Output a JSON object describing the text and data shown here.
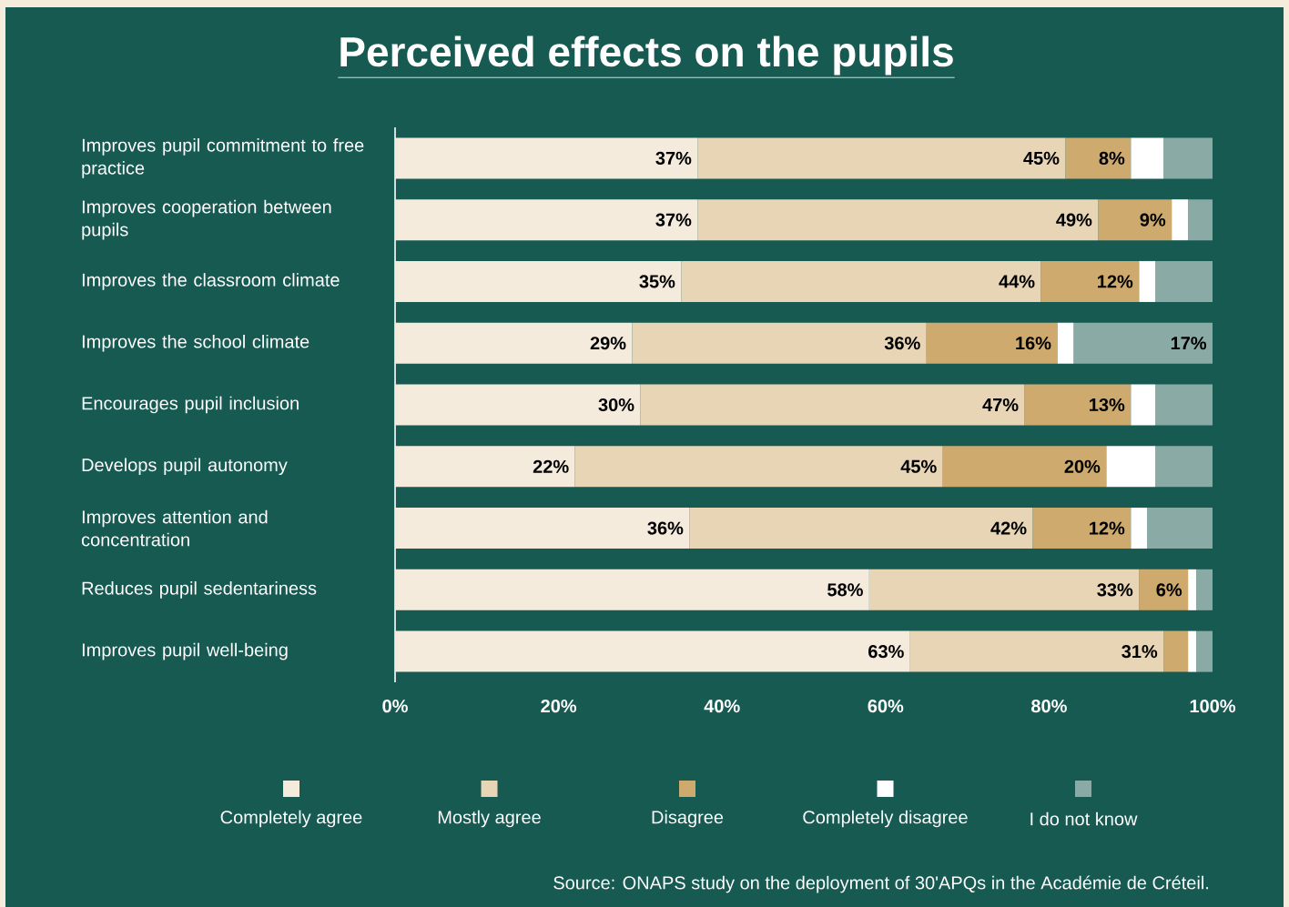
{
  "chart_data": {
    "type": "bar",
    "orientation": "horizontal",
    "stacked": true,
    "title": "Perceived effects on the pupils",
    "categories": [
      "Improves pupil commitment to free practice",
      "Improves cooperation between pupils",
      "Improves the classroom climate",
      "Improves the school climate",
      "Encourages pupil inclusion",
      "Develops pupil autonomy",
      "Improves attention and concentration",
      "Reduces pupil sedentariness",
      "Improves pupil well-being"
    ],
    "series": [
      {
        "name": "Completely agree",
        "color": "#f5ebdd",
        "values": [
          37,
          37,
          35,
          29,
          30,
          22,
          36,
          58,
          63
        ],
        "value_labels": [
          "37%",
          "37%",
          "35%",
          "29%",
          "30%",
          "22%",
          "36%",
          "58%",
          "63%"
        ]
      },
      {
        "name": "Mostly agree",
        "color": "#e8d5b5",
        "values": [
          45,
          49,
          44,
          36,
          47,
          45,
          42,
          33,
          31
        ],
        "value_labels": [
          "45%",
          "49%",
          "44%",
          "36%",
          "47%",
          "45%",
          "42%",
          "33%",
          "31%"
        ]
      },
      {
        "name": "Disagree",
        "color": "#cfaa6e",
        "values": [
          8,
          9,
          12,
          16,
          13,
          20,
          12,
          6,
          3
        ],
        "value_labels": [
          "8%",
          "9%",
          "12%",
          "16%",
          "13%",
          "20%",
          "12%",
          "6%",
          null
        ]
      },
      {
        "name": "Completely disagree",
        "color": "#ffffff",
        "values": [
          4,
          2,
          2,
          2,
          3,
          6,
          2,
          1,
          1
        ],
        "value_labels": [
          null,
          null,
          null,
          null,
          null,
          null,
          null,
          null,
          null
        ]
      },
      {
        "name": "I do not know",
        "color": "#8aaba5",
        "values": [
          6,
          3,
          7,
          17,
          7,
          7,
          8,
          2,
          2
        ],
        "value_labels": [
          null,
          null,
          null,
          "17%",
          null,
          null,
          null,
          null,
          null
        ]
      }
    ],
    "xlim": [
      0,
      100
    ],
    "xticks": [
      {
        "value": 0,
        "label": "0%"
      },
      {
        "value": 20,
        "label": "20%"
      },
      {
        "value": 40,
        "label": "40%"
      },
      {
        "value": 60,
        "label": "60%"
      },
      {
        "value": 80,
        "label": "80%"
      },
      {
        "value": 100,
        "label": "100%"
      }
    ],
    "legend": "bottom",
    "annotations": [
      "Source: ONAPS study on the deployment of 30'APQs in the Académie de Créteil."
    ]
  }
}
